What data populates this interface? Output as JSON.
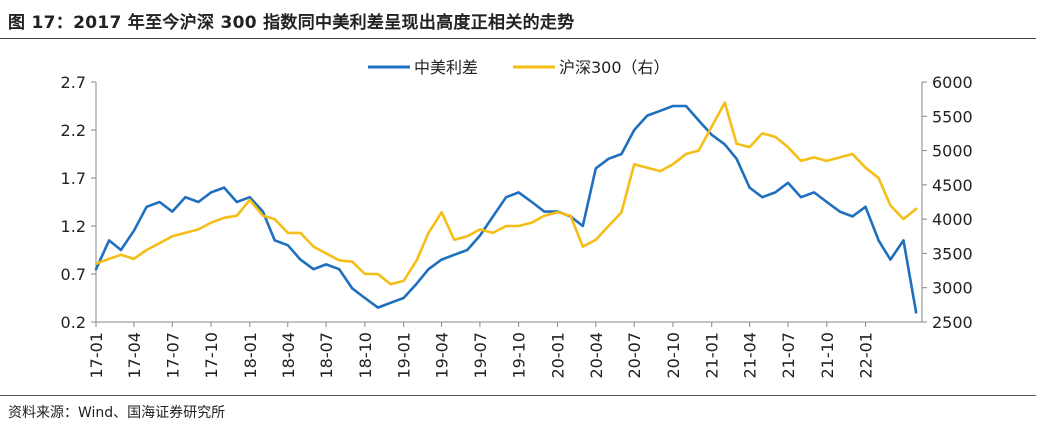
{
  "figure": {
    "title": "图 17：2017 年至今沪深 300 指数同中美利差呈现出高度正相关的走势",
    "source": "资料来源：Wind、国海证券研究所"
  },
  "colors": {
    "spread": "#1F6FBF",
    "csi300": "#F5BE16",
    "axis": "#888888",
    "grid": "#bfbfbf",
    "text": "#222222"
  },
  "chart_data": {
    "type": "line",
    "legend_position": "top-center",
    "grid": false,
    "x_tick_labels": [
      "17-01",
      "17-04",
      "17-07",
      "17-10",
      "18-01",
      "18-04",
      "18-07",
      "18-10",
      "19-01",
      "19-04",
      "19-07",
      "19-10",
      "20-01",
      "20-04",
      "20-07",
      "20-10",
      "21-01",
      "21-04",
      "21-07",
      "21-10",
      "22-01"
    ],
    "y_left": {
      "ticks": [
        0.2,
        0.7,
        1.2,
        1.7,
        2.2,
        2.7
      ],
      "ylim": [
        0.2,
        2.7
      ]
    },
    "y_right": {
      "ticks": [
        2500,
        3000,
        3500,
        4000,
        4500,
        5000,
        5500,
        6000
      ],
      "ylim": [
        2500,
        6000
      ]
    },
    "series": [
      {
        "name": "中美利差",
        "axis": "left",
        "x": [
          "2017-01",
          "2017-02",
          "2017-03",
          "2017-04",
          "2017-05",
          "2017-06",
          "2017-07",
          "2017-08",
          "2017-09",
          "2017-10",
          "2017-11",
          "2017-12",
          "2018-01",
          "2018-02",
          "2018-03",
          "2018-04",
          "2018-05",
          "2018-06",
          "2018-07",
          "2018-08",
          "2018-09",
          "2018-10",
          "2018-11",
          "2018-12",
          "2019-01",
          "2019-02",
          "2019-03",
          "2019-04",
          "2019-05",
          "2019-06",
          "2019-07",
          "2019-08",
          "2019-09",
          "2019-10",
          "2019-11",
          "2019-12",
          "2020-01",
          "2020-02",
          "2020-03",
          "2020-04",
          "2020-05",
          "2020-06",
          "2020-07",
          "2020-08",
          "2020-09",
          "2020-10",
          "2020-11",
          "2020-12",
          "2021-01",
          "2021-02",
          "2021-03",
          "2021-04",
          "2021-05",
          "2021-06",
          "2021-07",
          "2021-08",
          "2021-09",
          "2021-10",
          "2021-11",
          "2021-12",
          "2022-01",
          "2022-02",
          "2022-03",
          "2022-04",
          "2022-05"
        ],
        "values": [
          0.75,
          1.05,
          0.95,
          1.15,
          1.4,
          1.45,
          1.35,
          1.5,
          1.45,
          1.55,
          1.6,
          1.45,
          1.5,
          1.35,
          1.05,
          1.0,
          0.85,
          0.75,
          0.8,
          0.75,
          0.55,
          0.45,
          0.35,
          0.4,
          0.45,
          0.6,
          0.75,
          0.85,
          0.9,
          0.95,
          1.1,
          1.3,
          1.5,
          1.55,
          1.45,
          1.35,
          1.35,
          1.3,
          1.2,
          1.8,
          1.9,
          1.95,
          2.2,
          2.35,
          2.4,
          2.45,
          2.45,
          2.3,
          2.15,
          2.05,
          1.9,
          1.6,
          1.5,
          1.55,
          1.65,
          1.5,
          1.55,
          1.45,
          1.35,
          1.3,
          1.4,
          1.05,
          0.85,
          1.05,
          0.3
        ]
      },
      {
        "name": "沪深300（右）",
        "axis": "right",
        "x": [
          "2017-01",
          "2017-02",
          "2017-03",
          "2017-04",
          "2017-05",
          "2017-06",
          "2017-07",
          "2017-08",
          "2017-09",
          "2017-10",
          "2017-11",
          "2017-12",
          "2018-01",
          "2018-02",
          "2018-03",
          "2018-04",
          "2018-05",
          "2018-06",
          "2018-07",
          "2018-08",
          "2018-09",
          "2018-10",
          "2018-11",
          "2018-12",
          "2019-01",
          "2019-02",
          "2019-03",
          "2019-04",
          "2019-05",
          "2019-06",
          "2019-07",
          "2019-08",
          "2019-09",
          "2019-10",
          "2019-11",
          "2019-12",
          "2020-01",
          "2020-02",
          "2020-03",
          "2020-04",
          "2020-05",
          "2020-06",
          "2020-07",
          "2020-08",
          "2020-09",
          "2020-10",
          "2020-11",
          "2020-12",
          "2021-01",
          "2021-02",
          "2021-03",
          "2021-04",
          "2021-05",
          "2021-06",
          "2021-07",
          "2021-08",
          "2021-09",
          "2021-10",
          "2021-11",
          "2021-12",
          "2022-01",
          "2022-02",
          "2022-03",
          "2022-04",
          "2022-05"
        ],
        "values": [
          3350,
          3420,
          3480,
          3420,
          3550,
          3650,
          3750,
          3800,
          3850,
          3950,
          4020,
          4050,
          4280,
          4050,
          4000,
          3800,
          3800,
          3600,
          3500,
          3400,
          3380,
          3200,
          3200,
          3050,
          3100,
          3400,
          3800,
          4100,
          3700,
          3750,
          3850,
          3800,
          3900,
          3900,
          3950,
          4050,
          4100,
          4050,
          3600,
          3700,
          3900,
          4100,
          4800,
          4750,
          4700,
          4800,
          4950,
          5000,
          5350,
          5700,
          5100,
          5050,
          5250,
          5200,
          5050,
          4850,
          4900,
          4850,
          4900,
          4950,
          4750,
          4600,
          4200,
          4000,
          4150
        ]
      }
    ]
  }
}
